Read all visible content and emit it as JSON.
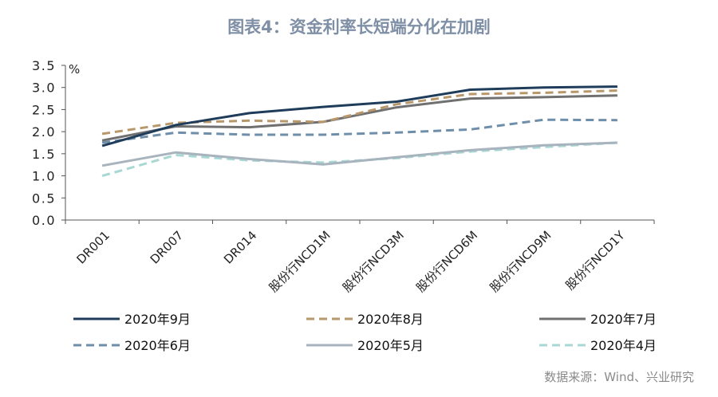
{
  "chart_data": {
    "type": "line",
    "title": "图表4：资金利率长短端分化在加剧",
    "ylabel": "%",
    "ylim": [
      0,
      3.5
    ],
    "yticks": [
      "0.0",
      "0.5",
      "1.0",
      "1.5",
      "2.0",
      "2.5",
      "3.0",
      "3.5"
    ],
    "grid": false,
    "legend_position": "bottom",
    "categories": [
      "DR001",
      "DR007",
      "DR014",
      "股份行NCD1M",
      "股份行NCD3M",
      "股份行NCD6M",
      "股份行NCD9M",
      "股份行NCD1Y"
    ],
    "series": [
      {
        "name": "2020年9月",
        "color": "#1f3d5a",
        "dash": false,
        "values": [
          1.68,
          2.15,
          2.42,
          2.56,
          2.68,
          2.95,
          3.0,
          3.02
        ]
      },
      {
        "name": "2020年8月",
        "color": "#b8976a",
        "dash": true,
        "values": [
          1.95,
          2.2,
          2.25,
          2.22,
          2.62,
          2.85,
          2.88,
          2.93
        ]
      },
      {
        "name": "2020年7月",
        "color": "#707070",
        "dash": false,
        "values": [
          1.8,
          2.12,
          2.1,
          2.22,
          2.55,
          2.75,
          2.78,
          2.82
        ]
      },
      {
        "name": "2020年6月",
        "color": "#6f8eaa",
        "dash": true,
        "values": [
          1.75,
          1.98,
          1.93,
          1.93,
          1.98,
          2.05,
          2.27,
          2.26
        ]
      },
      {
        "name": "2020年5月",
        "color": "#a7b3bd",
        "dash": false,
        "values": [
          1.23,
          1.53,
          1.38,
          1.26,
          1.42,
          1.58,
          1.69,
          1.75
        ]
      },
      {
        "name": "2020年4月",
        "color": "#a8d8d4",
        "dash": true,
        "values": [
          1.0,
          1.47,
          1.35,
          1.3,
          1.4,
          1.55,
          1.65,
          1.75
        ]
      }
    ]
  },
  "source": "数据来源：Wind、兴业研究"
}
